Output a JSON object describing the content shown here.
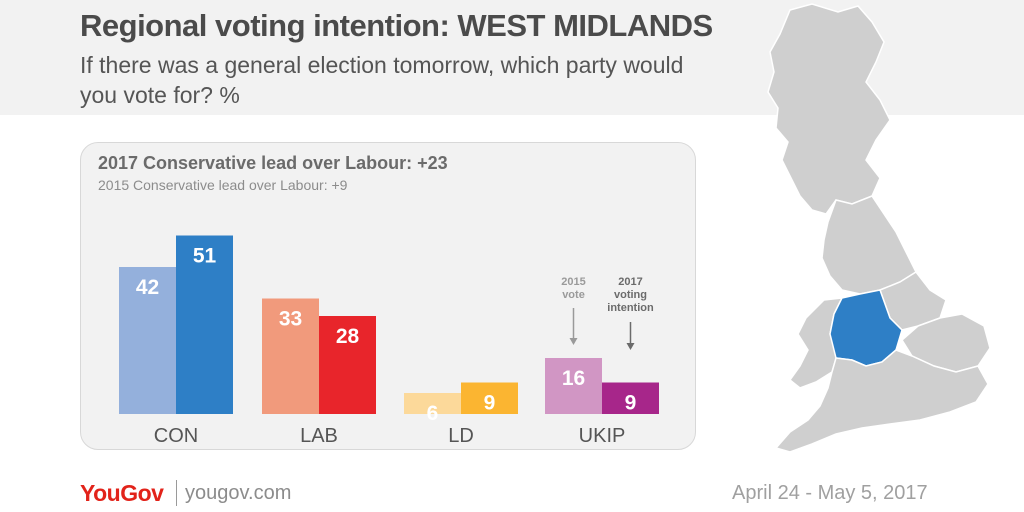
{
  "header": {
    "title": "Regional voting intention: WEST MIDLANDS",
    "subtitle": "If there was a general election tomorrow, which party would you vote for? %"
  },
  "leads": {
    "current": "2017 Conservative lead over Labour: +23",
    "previous": "2015 Conservative lead over Labour: +9"
  },
  "annotations": {
    "vote_2015": [
      "2015",
      "vote"
    ],
    "intention_2017": [
      "2017",
      "voting",
      "intention"
    ]
  },
  "footer": {
    "brand": "YouGov",
    "url": "yougov.com",
    "date": "April 24 - May 5, 2017"
  },
  "colors": {
    "CON": [
      "#94b0dc",
      "#2e7fc6"
    ],
    "LAB": [
      "#f19a7c",
      "#e8252b"
    ],
    "LD": [
      "#fcd99a",
      "#fbb531"
    ],
    "UKIP": [
      "#d196c4",
      "#a7268a"
    ],
    "map_highlight": "#2e7fc6",
    "map_base": "#cfcfcf"
  },
  "chart_data": {
    "type": "bar",
    "categories": [
      "CON",
      "LAB",
      "LD",
      "UKIP"
    ],
    "series": [
      {
        "name": "2015 vote",
        "values": [
          42,
          33,
          6,
          16
        ]
      },
      {
        "name": "2017 voting intention",
        "values": [
          51,
          28,
          9,
          9
        ]
      }
    ],
    "ylim": [
      0,
      55
    ],
    "grid": false,
    "title": "2017 Conservative lead over Labour: +23",
    "subtitle": "2015 Conservative lead over Labour: +9"
  }
}
